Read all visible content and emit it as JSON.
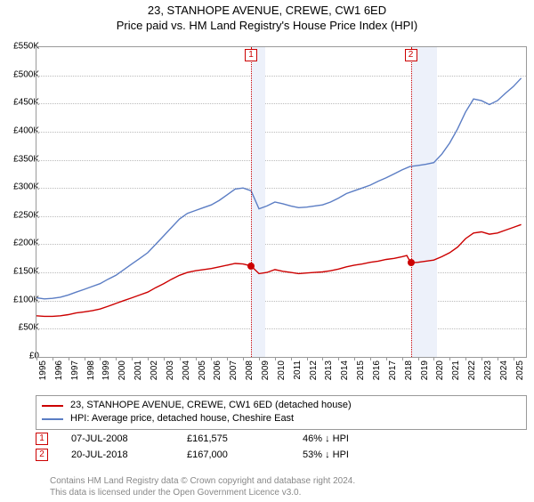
{
  "title": "23, STANHOPE AVENUE, CREWE, CW1 6ED",
  "subtitle": "Price paid vs. HM Land Registry's House Price Index (HPI)",
  "chart": {
    "type": "line",
    "ylim": [
      0,
      550000
    ],
    "ytick_step": 50000,
    "ytick_labels": [
      "£0",
      "£50K",
      "£100K",
      "£150K",
      "£200K",
      "£250K",
      "£300K",
      "£350K",
      "£400K",
      "£450K",
      "£500K",
      "£550K"
    ],
    "xlim_years": [
      1995,
      2025.8
    ],
    "xtick_years": [
      1995,
      1996,
      1997,
      1998,
      1999,
      2000,
      2001,
      2002,
      2003,
      2004,
      2005,
      2006,
      2007,
      2008,
      2009,
      2010,
      2011,
      2012,
      2013,
      2014,
      2015,
      2016,
      2017,
      2018,
      2019,
      2020,
      2021,
      2022,
      2023,
      2024,
      2025
    ],
    "background_color": "#ffffff",
    "grid_color": "#bbbbbb",
    "plot_border_color": "#999999",
    "shade_color": "#edf1fa",
    "shade_ranges_years": [
      [
        2008.5,
        2009.4
      ],
      [
        2018.55,
        2020.2
      ]
    ],
    "series": [
      {
        "name": "property",
        "color": "#cc0000",
        "line_width": 1.4,
        "points": [
          [
            1995.0,
            73000
          ],
          [
            1995.5,
            72000
          ],
          [
            1996.0,
            72000
          ],
          [
            1996.5,
            73000
          ],
          [
            1997.0,
            75000
          ],
          [
            1997.5,
            78000
          ],
          [
            1998.0,
            80000
          ],
          [
            1998.5,
            82000
          ],
          [
            1999.0,
            85000
          ],
          [
            1999.5,
            90000
          ],
          [
            2000.0,
            95000
          ],
          [
            2000.5,
            100000
          ],
          [
            2001.0,
            105000
          ],
          [
            2001.5,
            110000
          ],
          [
            2002.0,
            115000
          ],
          [
            2002.5,
            123000
          ],
          [
            2003.0,
            130000
          ],
          [
            2003.5,
            138000
          ],
          [
            2004.0,
            145000
          ],
          [
            2004.5,
            150000
          ],
          [
            2005.0,
            153000
          ],
          [
            2005.5,
            155000
          ],
          [
            2006.0,
            157000
          ],
          [
            2006.5,
            160000
          ],
          [
            2007.0,
            163000
          ],
          [
            2007.5,
            166000
          ],
          [
            2008.0,
            165000
          ],
          [
            2008.5,
            161575
          ],
          [
            2009.0,
            148000
          ],
          [
            2009.5,
            150000
          ],
          [
            2010.0,
            155000
          ],
          [
            2010.5,
            152000
          ],
          [
            2011.0,
            150000
          ],
          [
            2011.5,
            148000
          ],
          [
            2012.0,
            149000
          ],
          [
            2012.5,
            150000
          ],
          [
            2013.0,
            151000
          ],
          [
            2013.5,
            153000
          ],
          [
            2014.0,
            156000
          ],
          [
            2014.5,
            160000
          ],
          [
            2015.0,
            163000
          ],
          [
            2015.5,
            165000
          ],
          [
            2016.0,
            168000
          ],
          [
            2016.5,
            170000
          ],
          [
            2017.0,
            173000
          ],
          [
            2017.5,
            175000
          ],
          [
            2018.0,
            178000
          ],
          [
            2018.3,
            180000
          ],
          [
            2018.55,
            167000
          ],
          [
            2019.0,
            168000
          ],
          [
            2019.5,
            170000
          ],
          [
            2020.0,
            172000
          ],
          [
            2020.5,
            178000
          ],
          [
            2021.0,
            185000
          ],
          [
            2021.5,
            195000
          ],
          [
            2022.0,
            210000
          ],
          [
            2022.5,
            220000
          ],
          [
            2023.0,
            222000
          ],
          [
            2023.5,
            218000
          ],
          [
            2024.0,
            220000
          ],
          [
            2024.5,
            225000
          ],
          [
            2025.0,
            230000
          ],
          [
            2025.5,
            235000
          ]
        ]
      },
      {
        "name": "hpi",
        "color": "#5b7dc4",
        "line_width": 1.4,
        "points": [
          [
            1995.0,
            105000
          ],
          [
            1995.5,
            103000
          ],
          [
            1996.0,
            104000
          ],
          [
            1996.5,
            106000
          ],
          [
            1997.0,
            110000
          ],
          [
            1997.5,
            115000
          ],
          [
            1998.0,
            120000
          ],
          [
            1998.5,
            125000
          ],
          [
            1999.0,
            130000
          ],
          [
            1999.5,
            138000
          ],
          [
            2000.0,
            145000
          ],
          [
            2000.5,
            155000
          ],
          [
            2001.0,
            165000
          ],
          [
            2001.5,
            175000
          ],
          [
            2002.0,
            185000
          ],
          [
            2002.5,
            200000
          ],
          [
            2003.0,
            215000
          ],
          [
            2003.5,
            230000
          ],
          [
            2004.0,
            245000
          ],
          [
            2004.5,
            255000
          ],
          [
            2005.0,
            260000
          ],
          [
            2005.5,
            265000
          ],
          [
            2006.0,
            270000
          ],
          [
            2006.5,
            278000
          ],
          [
            2007.0,
            288000
          ],
          [
            2007.5,
            298000
          ],
          [
            2008.0,
            300000
          ],
          [
            2008.5,
            295000
          ],
          [
            2009.0,
            263000
          ],
          [
            2009.5,
            268000
          ],
          [
            2010.0,
            275000
          ],
          [
            2010.5,
            272000
          ],
          [
            2011.0,
            268000
          ],
          [
            2011.5,
            265000
          ],
          [
            2012.0,
            266000
          ],
          [
            2012.5,
            268000
          ],
          [
            2013.0,
            270000
          ],
          [
            2013.5,
            275000
          ],
          [
            2014.0,
            282000
          ],
          [
            2014.5,
            290000
          ],
          [
            2015.0,
            295000
          ],
          [
            2015.5,
            300000
          ],
          [
            2016.0,
            305000
          ],
          [
            2016.5,
            312000
          ],
          [
            2017.0,
            318000
          ],
          [
            2017.5,
            325000
          ],
          [
            2018.0,
            332000
          ],
          [
            2018.5,
            338000
          ],
          [
            2019.0,
            340000
          ],
          [
            2019.5,
            342000
          ],
          [
            2020.0,
            345000
          ],
          [
            2020.5,
            360000
          ],
          [
            2021.0,
            380000
          ],
          [
            2021.5,
            405000
          ],
          [
            2022.0,
            435000
          ],
          [
            2022.5,
            458000
          ],
          [
            2023.0,
            455000
          ],
          [
            2023.5,
            448000
          ],
          [
            2024.0,
            455000
          ],
          [
            2024.5,
            468000
          ],
          [
            2025.0,
            480000
          ],
          [
            2025.5,
            495000
          ]
        ]
      }
    ],
    "markers": [
      {
        "id": "1",
        "year": 2008.5,
        "price": 161575
      },
      {
        "id": "2",
        "year": 2018.55,
        "price": 167000
      }
    ],
    "marker_box_color": "#cc0000",
    "sale_dot_color": "#cc0000"
  },
  "legend": {
    "series1": "23, STANHOPE AVENUE, CREWE, CW1 6ED (detached house)",
    "series2": "HPI: Average price, detached house, Cheshire East",
    "color1": "#cc0000",
    "color2": "#5b7dc4"
  },
  "sales": [
    {
      "marker": "1",
      "date": "07-JUL-2008",
      "price": "£161,575",
      "pct": "46%",
      "arrow": "↓",
      "suffix": "HPI"
    },
    {
      "marker": "2",
      "date": "20-JUL-2018",
      "price": "£167,000",
      "pct": "53%",
      "arrow": "↓",
      "suffix": "HPI"
    }
  ],
  "footer": {
    "line1": "Contains HM Land Registry data © Crown copyright and database right 2024.",
    "line2": "This data is licensed under the Open Government Licence v3.0."
  }
}
